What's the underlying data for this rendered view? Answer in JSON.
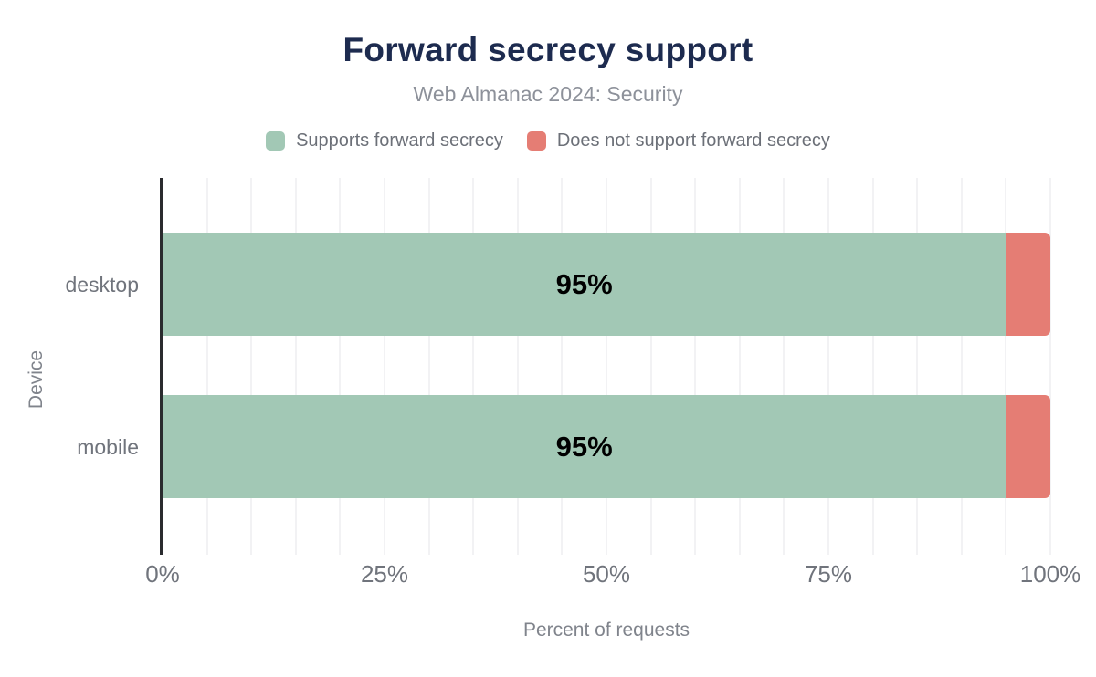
{
  "chart_data": {
    "type": "bar",
    "orientation": "horizontal",
    "stacked": true,
    "title": "Forward secrecy support",
    "subtitle": "Web Almanac 2024: Security",
    "categories": [
      "desktop",
      "mobile"
    ],
    "series": [
      {
        "name": "Supports forward secrecy",
        "color": "#a2c8b5",
        "values": [
          95,
          95
        ],
        "value_labels": [
          "95%",
          "95%"
        ]
      },
      {
        "name": "Does not support forward secrecy",
        "color": "#e57d74",
        "values": [
          5,
          5
        ]
      }
    ],
    "xlabel": "Percent of requests",
    "ylabel": "Device",
    "xlim": [
      0,
      100
    ],
    "xticks": [
      {
        "value": 0,
        "label": "0%"
      },
      {
        "value": 25,
        "label": "25%"
      },
      {
        "value": 50,
        "label": "50%"
      },
      {
        "value": 75,
        "label": "75%"
      },
      {
        "value": 100,
        "label": "100%"
      }
    ],
    "grid": {
      "vertical_step_pct": 5,
      "color": "#f2f2f4"
    },
    "legend_position": "top-center",
    "value_label_color": "#000000",
    "axis_line_color": "#2a2b2e",
    "text_colors": {
      "title": "#1d2b4f",
      "subtitle": "#8d919a",
      "legend": "#6c7078",
      "axis": "#70747c"
    }
  }
}
